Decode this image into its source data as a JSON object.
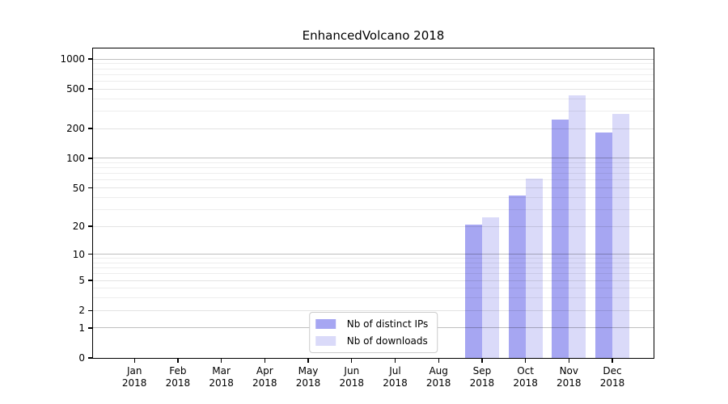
{
  "chart_data": {
    "type": "bar",
    "title": "EnhancedVolcano 2018",
    "categories": [
      "Jan",
      "Feb",
      "Mar",
      "Apr",
      "May",
      "Jun",
      "Jul",
      "Aug",
      "Sep",
      "Oct",
      "Nov",
      "Dec"
    ],
    "year": "2018",
    "series": [
      {
        "name": "Nb of distinct IPs",
        "color": "#a6a6f2",
        "values": [
          0,
          0,
          0,
          0,
          0,
          0,
          0,
          0,
          21,
          42,
          244,
          181
        ]
      },
      {
        "name": "Nb of downloads",
        "color": "#dadaf9",
        "values": [
          0,
          0,
          0,
          0,
          0,
          0,
          0,
          0,
          25,
          62,
          434,
          280
        ]
      }
    ],
    "xlabel": "",
    "ylabel": "",
    "y_scale": "log1p",
    "y_ticks": [
      0,
      1,
      2,
      5,
      10,
      20,
      50,
      100,
      200,
      500,
      1000
    ],
    "ylim": [
      0,
      1280
    ],
    "grid": true,
    "legend_position": "lower center"
  }
}
